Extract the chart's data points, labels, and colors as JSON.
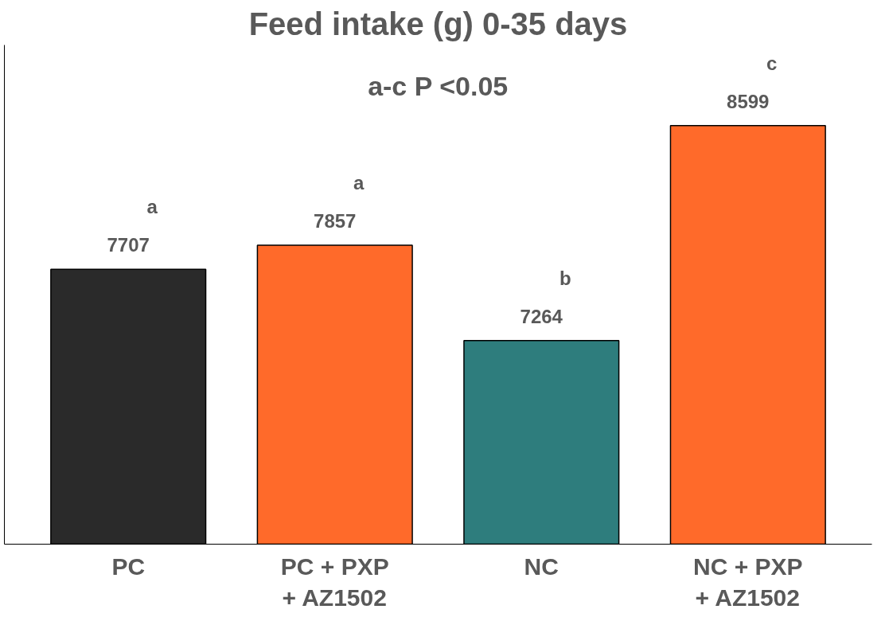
{
  "chart_data": {
    "type": "bar",
    "title": "Feed intake (g) 0-35 days",
    "categories": [
      "PC",
      "PC + PXP\n+ AZ1502",
      "NC",
      "NC + PXP\n+ AZ1502"
    ],
    "values": [
      7707,
      7857,
      7264,
      8599
    ],
    "colors": [
      "#2a2a2a",
      "#ff6a2a",
      "#2e7d7d",
      "#ff6a2a"
    ],
    "ylim": [
      6000,
      9100
    ],
    "data_labels": true,
    "tick_labels": "x",
    "grid": false,
    "annotations": [
      "a-c P <0.05",
      "a",
      "a",
      "b",
      "c"
    ]
  }
}
